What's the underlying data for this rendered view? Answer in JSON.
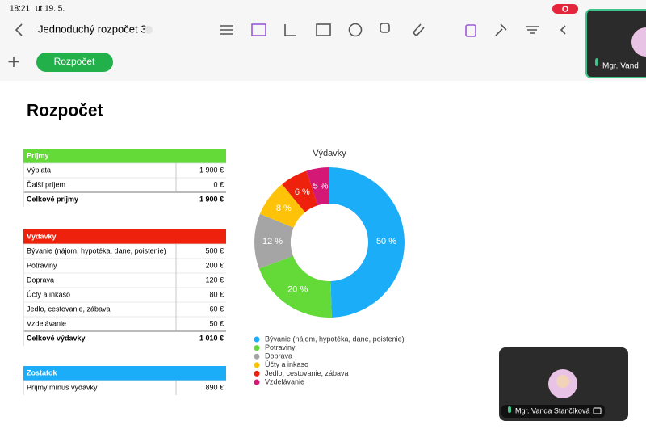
{
  "status_bar": {
    "time": "18:21",
    "date": "ut 19. 5."
  },
  "toolbar": {
    "doc_title": "Jednoduchý rozpočet 3"
  },
  "sheet_tab": "Rozpočet",
  "sheet_title": "Rozpočet",
  "tables": [
    {
      "header": "Príjmy",
      "color": "#63da38",
      "rows": [
        [
          "Výplata",
          "1 900 €"
        ],
        [
          "Ďalší príjem",
          "0 €"
        ]
      ],
      "total": [
        "Celkové príjmy",
        "1 900 €"
      ]
    },
    {
      "header": "Výdavky",
      "color": "#ee220c",
      "rows": [
        [
          "Bývanie (nájom, hypotéka, dane, poistenie)",
          "500 €"
        ],
        [
          "Potraviny",
          "200 €"
        ],
        [
          "Doprava",
          "120 €"
        ],
        [
          "Účty a inkaso",
          "80 €"
        ],
        [
          "Jedlo, cestovanie, zábava",
          "60 €"
        ],
        [
          "Vzdelávanie",
          "50 €"
        ]
      ],
      "total": [
        "Celkové výdavky",
        "1 010 €"
      ]
    },
    {
      "header": "Zostatok",
      "color": "#1badf8",
      "rows": [
        [
          "Príjmy mínus výdavky",
          "890 €"
        ]
      ]
    }
  ],
  "chart_data": {
    "type": "donut",
    "title": "Výdavky",
    "categories": [
      "Bývanie (nájom, hypotéka, dane, poistenie)",
      "Potraviny",
      "Doprava",
      "Účty a inkaso",
      "Jedlo, cestovanie, zábava",
      "Vzdelávanie"
    ],
    "values": [
      50,
      20,
      12,
      8,
      6,
      5
    ],
    "value_labels": [
      "50 %",
      "20 %",
      "12 %",
      "8 %",
      "6 %",
      "5 %"
    ],
    "colors": [
      "#1badf8",
      "#63da38",
      "#a5a5a5",
      "#fec309",
      "#ee220c",
      "#d41876"
    ]
  },
  "video_tiles": [
    {
      "name": "Mgr. Vand"
    },
    {
      "name": "Mgr. Vanda Stančíková"
    }
  ]
}
